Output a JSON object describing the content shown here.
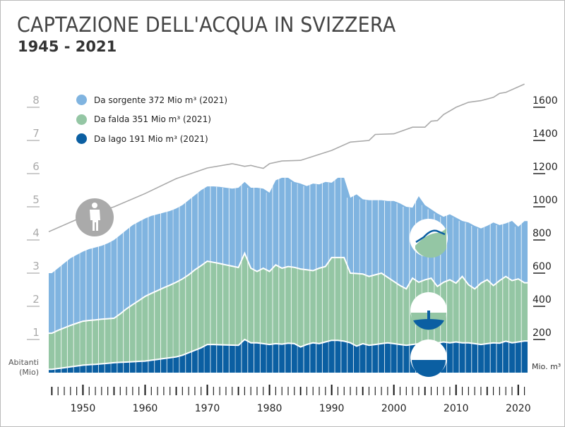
{
  "title": "CAPTAZIONE DELL'ACQUA IN SVIZZERA",
  "subtitle": "1945 - 2021",
  "colors": {
    "spring": "#80b4e0",
    "groundwater": "#94c6a4",
    "lake": "#0b5fa2",
    "population": "#aaaaaa"
  },
  "icons": [
    "person-icon",
    "spring-icon",
    "groundwater-well-icon",
    "lake-icon"
  ],
  "chart_data": {
    "type": "area",
    "stacked": true,
    "title": "CAPTAZIONE DELL'ACQUA IN SVIZZERA",
    "subtitle": "1945 - 2021",
    "x_start": 1945,
    "x_end": 2021,
    "x_tick_labels": [
      "1950",
      "1960",
      "1970",
      "1980",
      "1990",
      "2000",
      "2010",
      "2020"
    ],
    "y_right": {
      "label": "Mio. m³",
      "ticks": [
        "200",
        "400",
        "600",
        "800",
        "1000",
        "1200",
        "1400",
        "1600"
      ],
      "range": [
        0,
        1700
      ]
    },
    "y_left": {
      "label_line1": "Abitanti",
      "label_line2": "(Mio)",
      "ticks": [
        "1",
        "2",
        "3",
        "4",
        "5",
        "6",
        "7",
        "8"
      ],
      "range": [
        0,
        8.5
      ]
    },
    "legend": [
      {
        "key": "spring",
        "text": "Da sorgente 372 Mio m³ (2021)"
      },
      {
        "key": "groundwater",
        "text": "Da falda 351 Mio m³ (2021)"
      },
      {
        "key": "lake",
        "text": "Da lago 191 Mio m³ (2021)"
      }
    ],
    "legend_position": "top-left",
    "series": [
      {
        "key": "lake",
        "name": "Da lago",
        "values": [
          20,
          25,
          30,
          35,
          40,
          45,
          48,
          50,
          53,
          56,
          60,
          62,
          64,
          66,
          68,
          70,
          75,
          80,
          85,
          90,
          95,
          105,
          120,
          135,
          150,
          170,
          170,
          168,
          167,
          166,
          165,
          200,
          180,
          180,
          175,
          170,
          175,
          172,
          178,
          175,
          155,
          170,
          180,
          175,
          185,
          195,
          195,
          190,
          180,
          160,
          175,
          165,
          170,
          175,
          180,
          175,
          170,
          165,
          170,
          175,
          170,
          175,
          180,
          185,
          180,
          185,
          180,
          180,
          175,
          170,
          175,
          180,
          178,
          190,
          180,
          185,
          191
        ]
      },
      {
        "key": "groundwater",
        "name": "Da falda",
        "values": [
          218,
          230,
          240,
          250,
          258,
          265,
          267,
          268,
          269,
          269,
          268,
          293,
          321,
          344,
          367,
          390,
          403,
          415,
          427,
          438,
          450,
          460,
          470,
          485,
          495,
          502,
          495,
          490,
          483,
          476,
          469,
          520,
          450,
          430,
          455,
          440,
          475,
          458,
          462,
          460,
          470,
          450,
          435,
          455,
          455,
          499,
          499,
          504,
          420,
          438,
          420,
          415,
          420,
          425,
          395,
          375,
          355,
          340,
          400,
          370,
          390,
          395,
          340,
          360,
          380,
          355,
          400,
          350,
          330,
          370,
          385,
          345,
          377,
          390,
          375,
          380,
          351
        ]
      },
      {
        "key": "spring",
        "name": "Da sorgente",
        "values": [
          362,
          375,
          390,
          405,
          412,
          420,
          430,
          437,
          443,
          455,
          472,
          475,
          475,
          480,
          475,
          470,
          467,
          460,
          453,
          447,
          445,
          445,
          450,
          450,
          455,
          451,
          458,
          462,
          465,
          468,
          481,
          430,
          485,
          505,
          480,
          475,
          510,
          545,
          535,
          515,
          515,
          505,
          525,
          505,
          510,
          451,
          481,
          481,
          455,
          477,
          450,
          460,
          450,
          440,
          460,
          485,
          495,
          495,
          425,
          519,
          450,
          415,
          440,
          395,
          395,
          395,
          335,
          375,
          380,
          330,
          325,
          380,
          335,
          320,
          360,
          315,
          372
        ]
      }
    ],
    "population": {
      "axis": "left",
      "unit": "Mio",
      "points": [
        [
          1945,
          4.25
        ],
        [
          1950,
          4.7
        ],
        [
          1955,
          5.0
        ],
        [
          1960,
          5.4
        ],
        [
          1965,
          5.85
        ],
        [
          1970,
          6.17
        ],
        [
          1974,
          6.3
        ],
        [
          1976,
          6.22
        ],
        [
          1977,
          6.25
        ],
        [
          1978,
          6.2
        ],
        [
          1979,
          6.16
        ],
        [
          1980,
          6.3
        ],
        [
          1982,
          6.38
        ],
        [
          1985,
          6.4
        ],
        [
          1988,
          6.58
        ],
        [
          1990,
          6.7
        ],
        [
          1993,
          6.95
        ],
        [
          1996,
          7.0
        ],
        [
          1997,
          7.18
        ],
        [
          2000,
          7.2
        ],
        [
          2003,
          7.4
        ],
        [
          2005,
          7.4
        ],
        [
          2006,
          7.58
        ],
        [
          2007,
          7.6
        ],
        [
          2008,
          7.78
        ],
        [
          2010,
          8.0
        ],
        [
          2012,
          8.15
        ],
        [
          2014,
          8.2
        ],
        [
          2016,
          8.3
        ],
        [
          2017,
          8.42
        ],
        [
          2018,
          8.45
        ],
        [
          2021,
          8.7
        ]
      ]
    }
  }
}
